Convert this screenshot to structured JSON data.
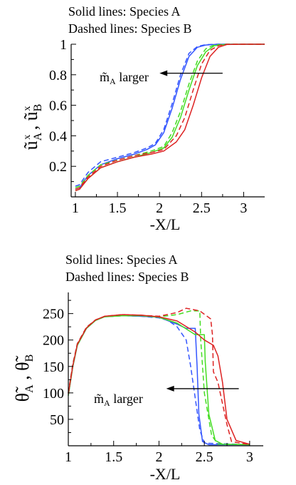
{
  "chart_data": [
    {
      "type": "line",
      "notes": [
        "Solid lines: Species A",
        "Dashed lines: Species B"
      ],
      "xlabel": "-X/L",
      "ylabel_main": "ũ",
      "ylabel_a_sub": "A",
      "ylabel_b_sub": "B",
      "ylabel_sup": "x",
      "ylabel_sep": " , ",
      "xlim": [
        0.95,
        3.25
      ],
      "ylim": [
        0.0,
        1.0
      ],
      "xticks": [
        1,
        1.5,
        2,
        2.5,
        3
      ],
      "xtick_labels": [
        "1",
        "1.5",
        "2",
        "2.5",
        "3"
      ],
      "yticks": [
        0.2,
        0.4,
        0.6,
        0.8,
        1
      ],
      "ytick_labels": [
        "0.2",
        "0.4",
        "0.6",
        "0.8",
        "1"
      ],
      "annotation": {
        "main": "m̃",
        "sub": "A",
        "rest": " larger",
        "arrow_from": [
          2.75,
          0.81
        ],
        "arrow_to": [
          2.0,
          0.81
        ]
      },
      "series": [
        {
          "color": "#3355ff",
          "dash": false,
          "x": [
            1.0,
            1.05,
            1.15,
            1.3,
            1.5,
            1.7,
            1.85,
            1.95,
            2.05,
            2.15,
            2.25,
            2.35,
            2.45,
            2.55,
            2.7,
            3.0,
            3.25
          ],
          "y": [
            0.05,
            0.06,
            0.14,
            0.21,
            0.25,
            0.28,
            0.31,
            0.34,
            0.42,
            0.58,
            0.77,
            0.92,
            0.98,
            0.995,
            1.0,
            1.0,
            1.0
          ]
        },
        {
          "color": "#3355ff",
          "dash": true,
          "x": [
            1.0,
            1.05,
            1.15,
            1.3,
            1.5,
            1.7,
            1.85,
            1.95,
            2.05,
            2.15,
            2.25,
            2.35,
            2.45,
            2.55,
            2.7,
            3.0,
            3.25
          ],
          "y": [
            0.07,
            0.08,
            0.16,
            0.23,
            0.26,
            0.29,
            0.32,
            0.35,
            0.44,
            0.61,
            0.8,
            0.94,
            0.985,
            0.997,
            1.0,
            1.0,
            1.0
          ]
        },
        {
          "color": "#44dd22",
          "dash": false,
          "x": [
            1.0,
            1.05,
            1.15,
            1.3,
            1.5,
            1.7,
            1.9,
            2.05,
            2.15,
            2.25,
            2.35,
            2.45,
            2.55,
            2.65,
            2.8,
            3.0,
            3.25
          ],
          "y": [
            0.04,
            0.05,
            0.12,
            0.19,
            0.23,
            0.26,
            0.29,
            0.32,
            0.39,
            0.52,
            0.7,
            0.86,
            0.95,
            0.99,
            1.0,
            1.0,
            1.0
          ]
        },
        {
          "color": "#44dd22",
          "dash": true,
          "x": [
            1.0,
            1.05,
            1.15,
            1.3,
            1.5,
            1.7,
            1.9,
            2.05,
            2.15,
            2.25,
            2.35,
            2.45,
            2.55,
            2.65,
            2.8,
            3.0,
            3.25
          ],
          "y": [
            0.06,
            0.07,
            0.14,
            0.21,
            0.24,
            0.27,
            0.3,
            0.33,
            0.42,
            0.56,
            0.74,
            0.89,
            0.97,
            0.995,
            1.0,
            1.0,
            1.0
          ]
        },
        {
          "color": "#dd2222",
          "dash": false,
          "x": [
            1.0,
            1.05,
            1.15,
            1.3,
            1.5,
            1.7,
            1.9,
            2.05,
            2.2,
            2.3,
            2.4,
            2.5,
            2.6,
            2.7,
            2.8,
            3.0,
            3.25
          ],
          "y": [
            0.04,
            0.05,
            0.12,
            0.19,
            0.23,
            0.26,
            0.28,
            0.3,
            0.36,
            0.44,
            0.6,
            0.78,
            0.92,
            0.98,
            0.998,
            1.0,
            1.0
          ]
        },
        {
          "color": "#dd2222",
          "dash": true,
          "x": [
            1.0,
            1.05,
            1.15,
            1.3,
            1.5,
            1.7,
            1.9,
            2.05,
            2.2,
            2.3,
            2.4,
            2.5,
            2.6,
            2.7,
            2.8,
            3.0,
            3.25
          ],
          "y": [
            0.05,
            0.06,
            0.13,
            0.2,
            0.24,
            0.27,
            0.29,
            0.31,
            0.4,
            0.52,
            0.7,
            0.87,
            0.96,
            0.99,
            1.0,
            1.0,
            1.0
          ]
        }
      ]
    },
    {
      "type": "line",
      "notes": [
        "Solid lines: Species A",
        "Dashed lines: Species B"
      ],
      "xlabel": "-X/L",
      "ylabel_main": "θ̃",
      "ylabel_a_sub": "A",
      "ylabel_b_sub": "B",
      "ylabel_sup": "",
      "ylabel_sep": " , ",
      "xlim": [
        1.0,
        3.15
      ],
      "ylim": [
        0,
        290
      ],
      "xticks": [
        1,
        1.5,
        2,
        2.5,
        3
      ],
      "xtick_labels": [
        "1",
        "1.5",
        "2",
        "2.5",
        "3"
      ],
      "yticks": [
        50,
        100,
        150,
        200,
        250
      ],
      "ytick_labels": [
        "50",
        "100",
        "150",
        "200",
        "250"
      ],
      "annotation": {
        "main": "m̃",
        "sub": "A",
        "rest": " larger",
        "arrow_from": [
          2.88,
          108
        ],
        "arrow_to": [
          2.08,
          108
        ]
      },
      "series": [
        {
          "color": "#3355ff",
          "dash": false,
          "x": [
            1.0,
            1.05,
            1.1,
            1.2,
            1.3,
            1.4,
            1.6,
            1.8,
            2.0,
            2.2,
            2.3,
            2.4,
            2.42,
            2.44,
            2.48,
            2.55,
            3.0
          ],
          "y": [
            95,
            150,
            190,
            222,
            237,
            244,
            246,
            245,
            243,
            230,
            222,
            222,
            150,
            60,
            8,
            2,
            2
          ]
        },
        {
          "color": "#3355ff",
          "dash": true,
          "x": [
            1.0,
            1.05,
            1.1,
            1.2,
            1.3,
            1.4,
            1.6,
            1.8,
            2.0,
            2.1,
            2.2,
            2.3,
            2.35,
            2.4,
            2.45,
            2.5,
            3.0
          ],
          "y": [
            100,
            155,
            193,
            224,
            238,
            244,
            246,
            245,
            242,
            237,
            225,
            200,
            150,
            90,
            30,
            5,
            2
          ]
        },
        {
          "color": "#44dd22",
          "dash": false,
          "x": [
            1.0,
            1.05,
            1.1,
            1.2,
            1.3,
            1.4,
            1.6,
            1.8,
            2.0,
            2.2,
            2.4,
            2.5,
            2.51,
            2.55,
            2.62,
            2.7,
            3.0
          ],
          "y": [
            95,
            150,
            190,
            222,
            237,
            244,
            246,
            246,
            243,
            232,
            210,
            210,
            160,
            60,
            10,
            3,
            2
          ]
        },
        {
          "color": "#44dd22",
          "dash": true,
          "x": [
            1.0,
            1.05,
            1.1,
            1.2,
            1.3,
            1.4,
            1.6,
            1.8,
            2.0,
            2.2,
            2.35,
            2.45,
            2.46,
            2.5,
            2.58,
            2.65,
            3.0
          ],
          "y": [
            100,
            155,
            193,
            224,
            238,
            244,
            246,
            246,
            244,
            248,
            255,
            255,
            200,
            100,
            20,
            3,
            2
          ]
        },
        {
          "color": "#dd2222",
          "dash": false,
          "x": [
            1.0,
            1.05,
            1.1,
            1.2,
            1.3,
            1.4,
            1.6,
            1.8,
            2.0,
            2.2,
            2.4,
            2.5,
            2.6,
            2.65,
            2.7,
            2.75,
            2.85,
            3.0
          ],
          "y": [
            98,
            152,
            192,
            223,
            238,
            245,
            248,
            247,
            244,
            236,
            215,
            200,
            190,
            170,
            120,
            50,
            10,
            3
          ]
        },
        {
          "color": "#dd2222",
          "dash": true,
          "x": [
            1.0,
            1.05,
            1.1,
            1.2,
            1.3,
            1.4,
            1.6,
            1.8,
            2.0,
            2.2,
            2.3,
            2.45,
            2.57,
            2.59,
            2.6,
            2.65,
            2.75,
            2.8,
            3.0
          ],
          "y": [
            100,
            154,
            193,
            224,
            238,
            245,
            248,
            247,
            245,
            252,
            260,
            255,
            240,
            210,
            140,
            120,
            40,
            8,
            2
          ]
        }
      ]
    }
  ]
}
